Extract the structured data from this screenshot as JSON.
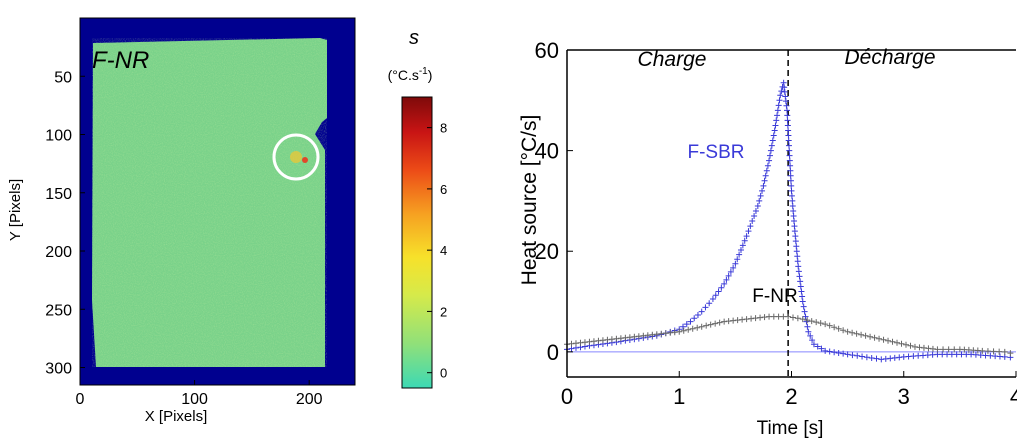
{
  "chart_data": [
    {
      "type": "heatmap",
      "panel_label": "F-NR",
      "xlabel": "X [Pixels]",
      "ylabel": "Y [Pixels]",
      "xlim": [
        0,
        240
      ],
      "ylim": [
        0,
        315
      ],
      "xticks": [
        0,
        100,
        200
      ],
      "yticks": [
        50,
        100,
        150,
        200,
        250,
        300
      ],
      "colorbar": {
        "title": "s",
        "unit_prefix": "(°C.s",
        "unit_exp": "-1",
        "unit_suffix": ")",
        "ticks": [
          0,
          2,
          4,
          6,
          8
        ],
        "range": [
          -0.5,
          9
        ]
      },
      "field_value": 0.7,
      "background_color": "#00008f",
      "annotation": "white circle marking the crack-tip hot spot near X≈200, Y≈125"
    },
    {
      "type": "scatter",
      "xlabel": "Time [s]",
      "ylabel": "Heat source [°C/s]",
      "xlim": [
        0,
        4
      ],
      "ylim": [
        -5,
        60
      ],
      "xticks": [
        0,
        1,
        2,
        3,
        4
      ],
      "yticks": [
        0,
        20,
        40,
        60
      ],
      "phase_labels": [
        "Charge",
        "Décharge"
      ],
      "phase_divider_x": 1.97,
      "series": [
        {
          "name": "F-SBR",
          "color": "#3a3ad8",
          "points": [
            [
              0.0,
              0.5
            ],
            [
              0.2,
              1.2
            ],
            [
              0.4,
              1.8
            ],
            [
              0.6,
              2.5
            ],
            [
              0.8,
              3.2
            ],
            [
              1.0,
              4.5
            ],
            [
              1.1,
              6.0
            ],
            [
              1.2,
              8.0
            ],
            [
              1.3,
              10.5
            ],
            [
              1.4,
              13.5
            ],
            [
              1.5,
              17.5
            ],
            [
              1.6,
              23.0
            ],
            [
              1.7,
              29.0
            ],
            [
              1.75,
              33.0
            ],
            [
              1.8,
              38.0
            ],
            [
              1.85,
              44.0
            ],
            [
              1.9,
              51.0
            ],
            [
              1.93,
              53.5
            ],
            [
              1.96,
              48.0
            ],
            [
              1.98,
              40.0
            ],
            [
              2.0,
              32.0
            ],
            [
              2.03,
              24.0
            ],
            [
              2.06,
              17.0
            ],
            [
              2.1,
              10.0
            ],
            [
              2.15,
              4.0
            ],
            [
              2.2,
              1.5
            ],
            [
              2.3,
              0.2
            ],
            [
              2.5,
              -0.5
            ],
            [
              2.8,
              -1.5
            ],
            [
              3.0,
              -1.0
            ],
            [
              3.3,
              -0.5
            ],
            [
              3.6,
              -0.5
            ],
            [
              3.9,
              -1.0
            ],
            [
              4.0,
              -1.2
            ]
          ]
        },
        {
          "name": "F-NR",
          "color": "#666666",
          "points": [
            [
              0.0,
              1.5
            ],
            [
              0.2,
              2.0
            ],
            [
              0.4,
              2.5
            ],
            [
              0.6,
              3.0
            ],
            [
              0.8,
              3.5
            ],
            [
              1.0,
              4.0
            ],
            [
              1.2,
              5.0
            ],
            [
              1.4,
              6.0
            ],
            [
              1.6,
              6.5
            ],
            [
              1.8,
              7.0
            ],
            [
              1.97,
              7.0
            ],
            [
              2.1,
              6.5
            ],
            [
              2.3,
              5.5
            ],
            [
              2.5,
              4.0
            ],
            [
              2.7,
              3.0
            ],
            [
              2.9,
              2.0
            ],
            [
              3.1,
              1.0
            ],
            [
              3.3,
              0.5
            ],
            [
              3.5,
              0.5
            ],
            [
              3.7,
              0.2
            ],
            [
              3.9,
              0.0
            ],
            [
              4.0,
              -0.5
            ]
          ]
        }
      ],
      "zero_line_color": "#8888ff"
    }
  ]
}
